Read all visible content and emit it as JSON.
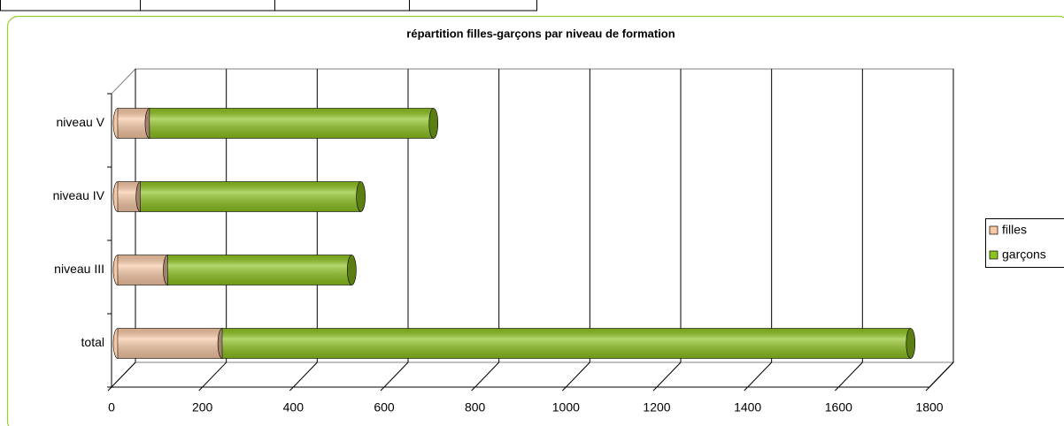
{
  "chart_data": {
    "type": "stacked-bar-horizontal",
    "title": "répartition filles-garçons par niveau de formation",
    "categories": [
      "total",
      "niveau III",
      "niveau IV",
      "niveau V"
    ],
    "series": [
      {
        "name": "filles",
        "color": "#f8c8a4",
        "values": [
          230,
          110,
          50,
          70
        ]
      },
      {
        "name": "garçons",
        "color": "#8cc21c",
        "values": [
          1515,
          405,
          485,
          625
        ]
      }
    ],
    "xlim": [
      0,
      1800
    ],
    "xticks": [
      0,
      200,
      400,
      600,
      800,
      1000,
      1200,
      1400,
      1600,
      1800
    ],
    "grid": true,
    "legend": "right"
  }
}
